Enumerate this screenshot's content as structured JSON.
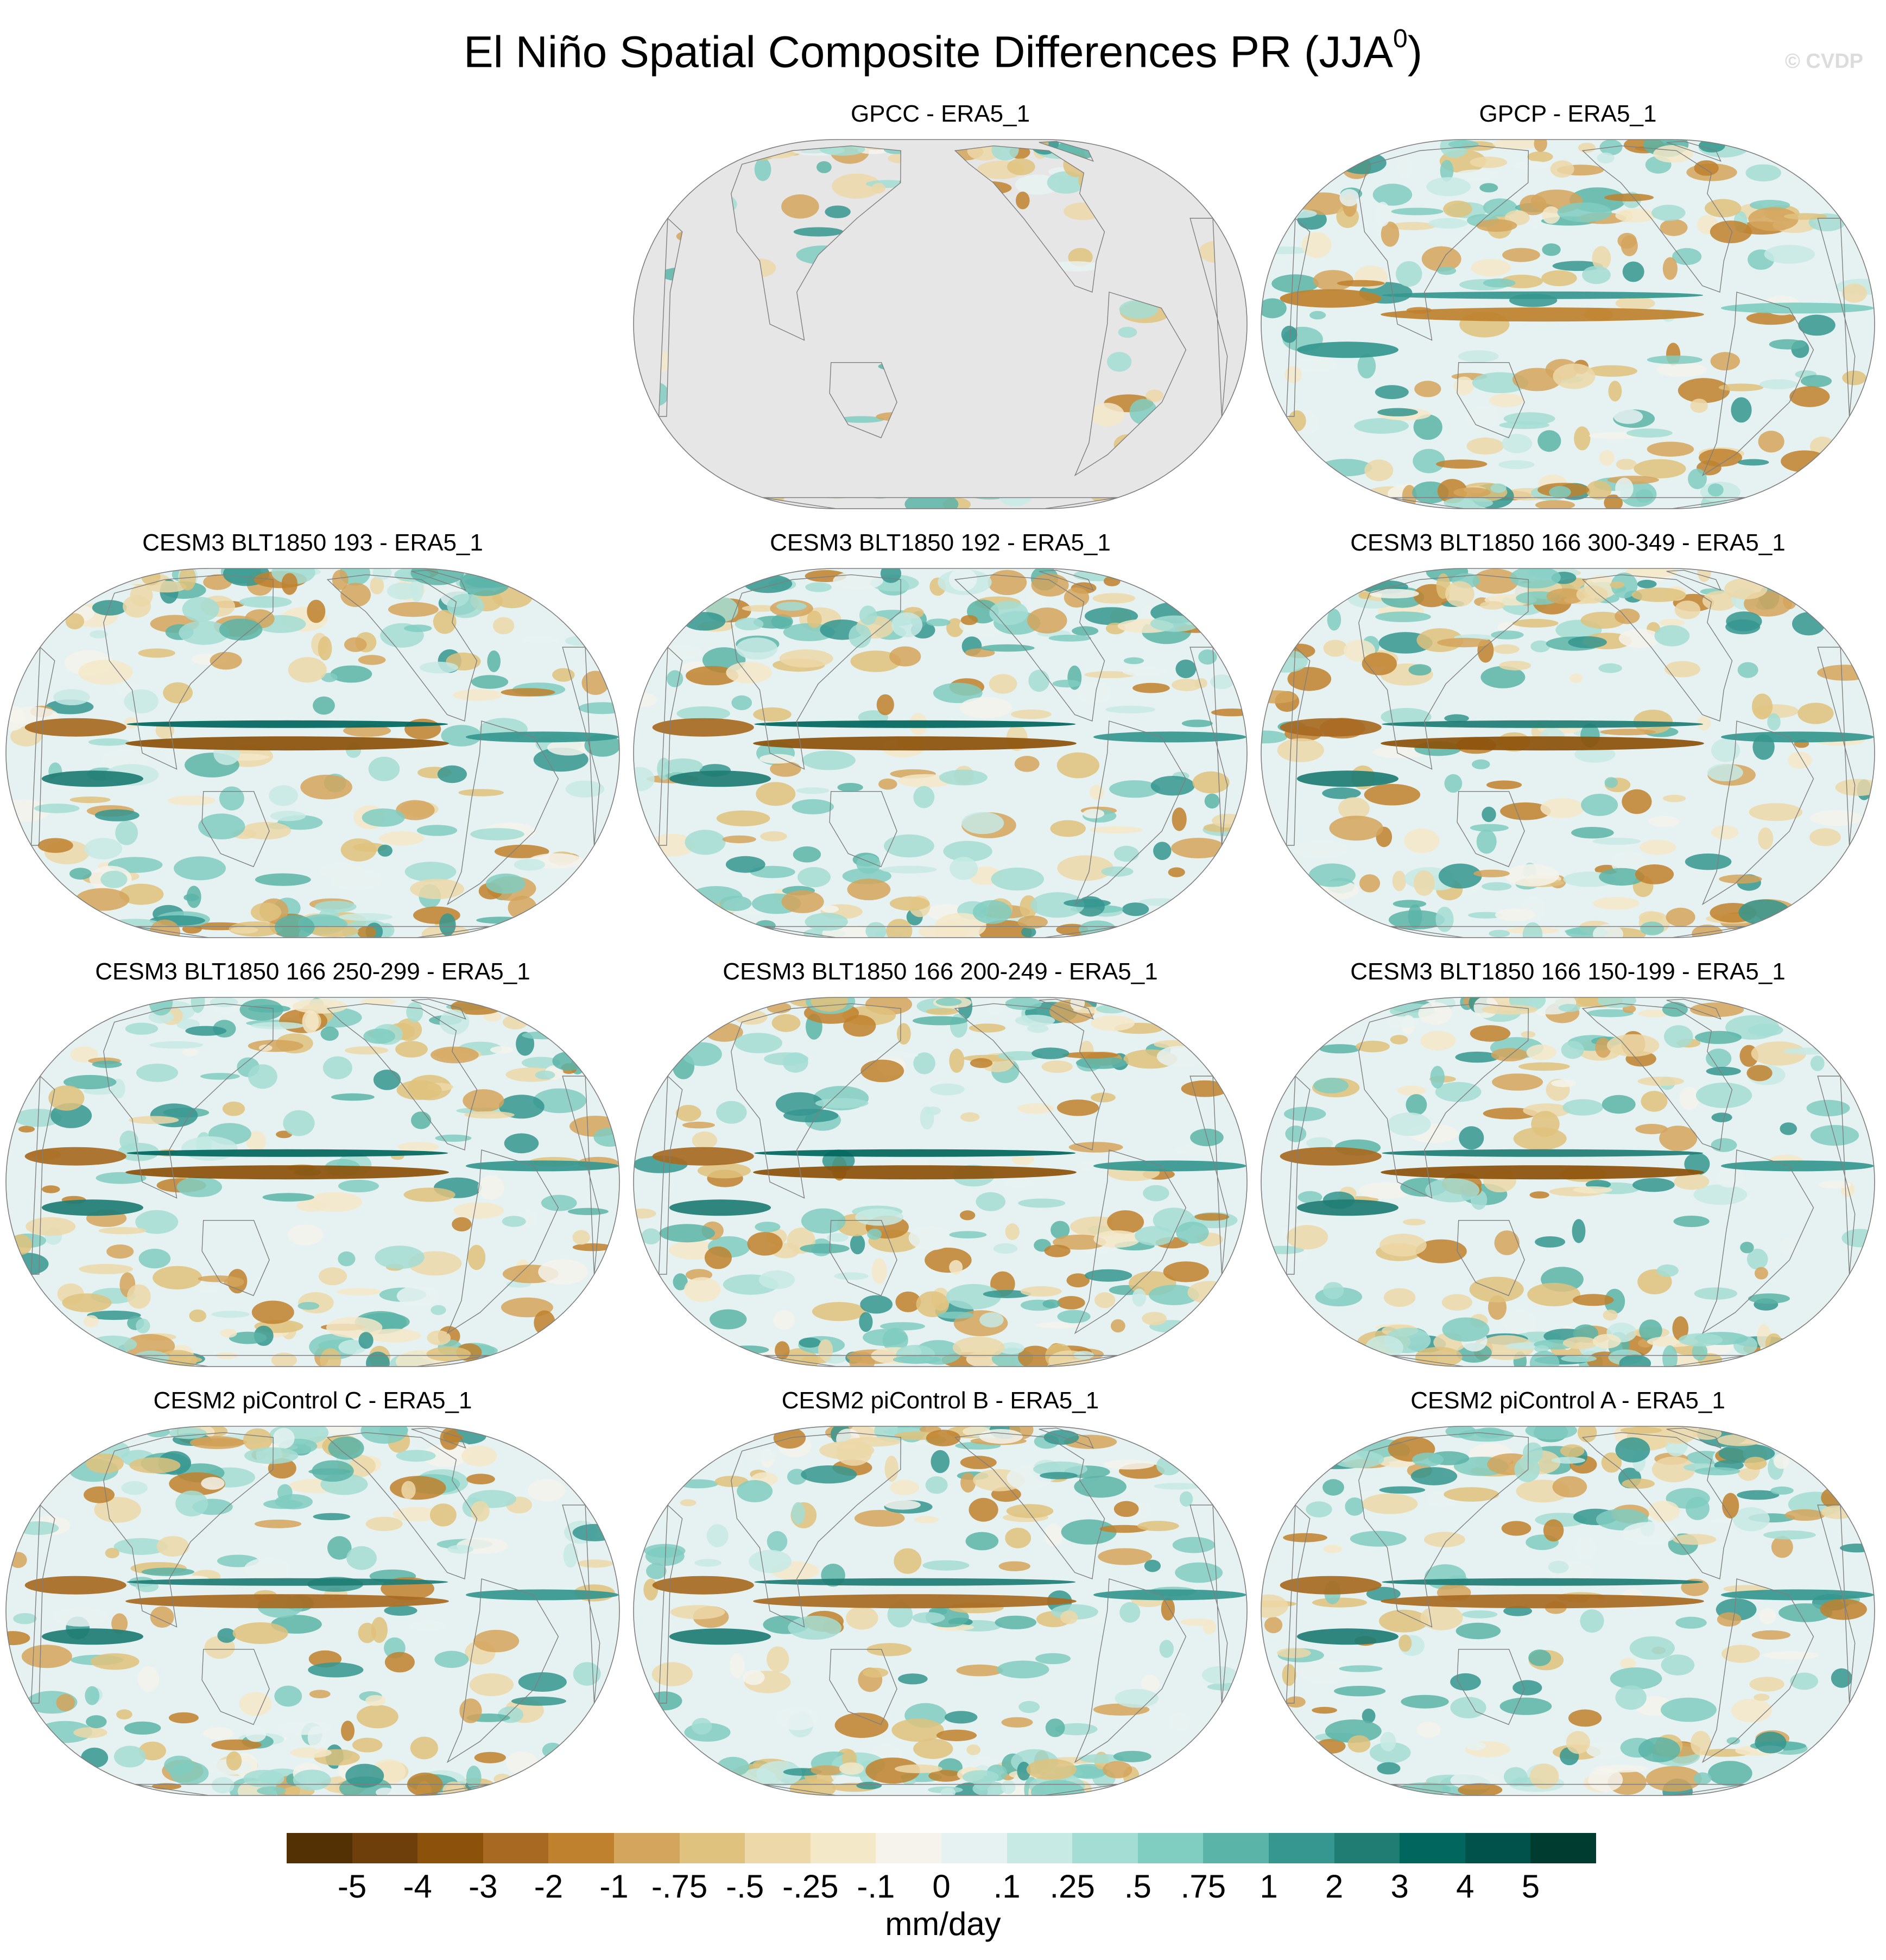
{
  "title": {
    "main": "El Niño Spatial Composite Differences PR (JJA",
    "superscript": "0",
    "close": ")"
  },
  "credit": "© CVDP",
  "panels": [
    {
      "id": "gpcc",
      "title": "GPCC - ERA5_1",
      "mask_ocean": true,
      "seed": 11,
      "enso": 0.0
    },
    {
      "id": "gpcp",
      "title": "GPCP - ERA5_1",
      "mask_ocean": false,
      "seed": 23,
      "enso": 0.45
    },
    {
      "id": "blt193",
      "title": "CESM3 BLT1850 193 - ERA5_1",
      "mask_ocean": false,
      "seed": 37,
      "enso": 1.0
    },
    {
      "id": "blt192",
      "title": "CESM3 BLT1850 192 - ERA5_1",
      "mask_ocean": false,
      "seed": 41,
      "enso": 1.0
    },
    {
      "id": "blt166_300",
      "title": "CESM3 BLT1850 166 300-349 - ERA5_1",
      "mask_ocean": false,
      "seed": 53,
      "enso": 0.95
    },
    {
      "id": "blt166_250",
      "title": "CESM3 BLT1850 166 250-299 - ERA5_1",
      "mask_ocean": false,
      "seed": 67,
      "enso": 1.0
    },
    {
      "id": "blt166_200",
      "title": "CESM3 BLT1850 166 200-249 - ERA5_1",
      "mask_ocean": false,
      "seed": 71,
      "enso": 1.0
    },
    {
      "id": "blt166_150",
      "title": "CESM3 BLT1850 166 150-199 - ERA5_1",
      "mask_ocean": false,
      "seed": 83,
      "enso": 0.95
    },
    {
      "id": "pic_c",
      "title": "CESM2 piControl C - ERA5_1",
      "mask_ocean": false,
      "seed": 97,
      "enso": 0.85
    },
    {
      "id": "pic_b",
      "title": "CESM2 piControl B - ERA5_1",
      "mask_ocean": false,
      "seed": 101,
      "enso": 0.85
    },
    {
      "id": "pic_a",
      "title": "CESM2 piControl A - ERA5_1",
      "mask_ocean": false,
      "seed": 113,
      "enso": 0.85
    }
  ],
  "colorbar": {
    "units": "mm/day",
    "tick_labels": [
      "-5",
      "-4",
      "-3",
      "-2",
      "-1",
      "-.75",
      "-.5",
      "-.25",
      "-.1",
      "0",
      ".1",
      ".25",
      ".5",
      ".75",
      "1",
      "2",
      "3",
      "4",
      "5"
    ],
    "colors": [
      "#543005",
      "#6e3f0a",
      "#8c510a",
      "#a86a22",
      "#bf812d",
      "#d4a55c",
      "#dfc27d",
      "#ecd8a8",
      "#f3e8c8",
      "#f5f3ec",
      "#e6f2f1",
      "#c7eae5",
      "#a3ddd3",
      "#80cdc1",
      "#5ab4a7",
      "#35978f",
      "#1f7d74",
      "#01665e",
      "#01524a",
      "#003c30"
    ]
  },
  "map_colors": {
    "missing": "#e6e6e6",
    "coast": "#7f7f7f",
    "outline": "#7f7f7f"
  }
}
